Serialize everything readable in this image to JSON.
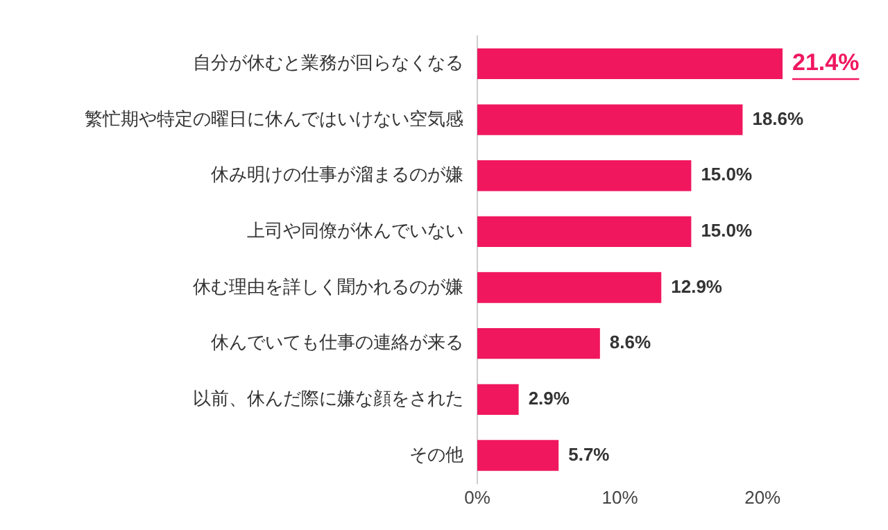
{
  "chart_data": {
    "type": "bar",
    "orientation": "horizontal",
    "categories": [
      "自分が休むと業務が回らなくなる",
      "繁忙期や特定の曜日に休んではいけない空気感",
      "休み明けの仕事が溜まるのが嫌",
      "上司や同僚が休んでいない",
      "休む理由を詳しく聞かれるのが嫌",
      "休んでいても仕事の連絡が来る",
      "以前、休んだ際に嫌な顔をされた",
      "その他"
    ],
    "values": [
      21.4,
      18.6,
      15.0,
      15.0,
      12.9,
      8.6,
      2.9,
      5.7
    ],
    "value_labels": [
      "21.4%",
      "18.6%",
      "15.0%",
      "15.0%",
      "12.9%",
      "8.6%",
      "2.9%",
      "5.7%"
    ],
    "color": "#f0175f",
    "xlim": [
      0,
      21.4
    ],
    "xticks": [
      {
        "value": 0,
        "label": "0%"
      },
      {
        "value": 10,
        "label": "10%"
      },
      {
        "value": 20,
        "label": "20%"
      }
    ],
    "grid": false,
    "legend": false
  }
}
